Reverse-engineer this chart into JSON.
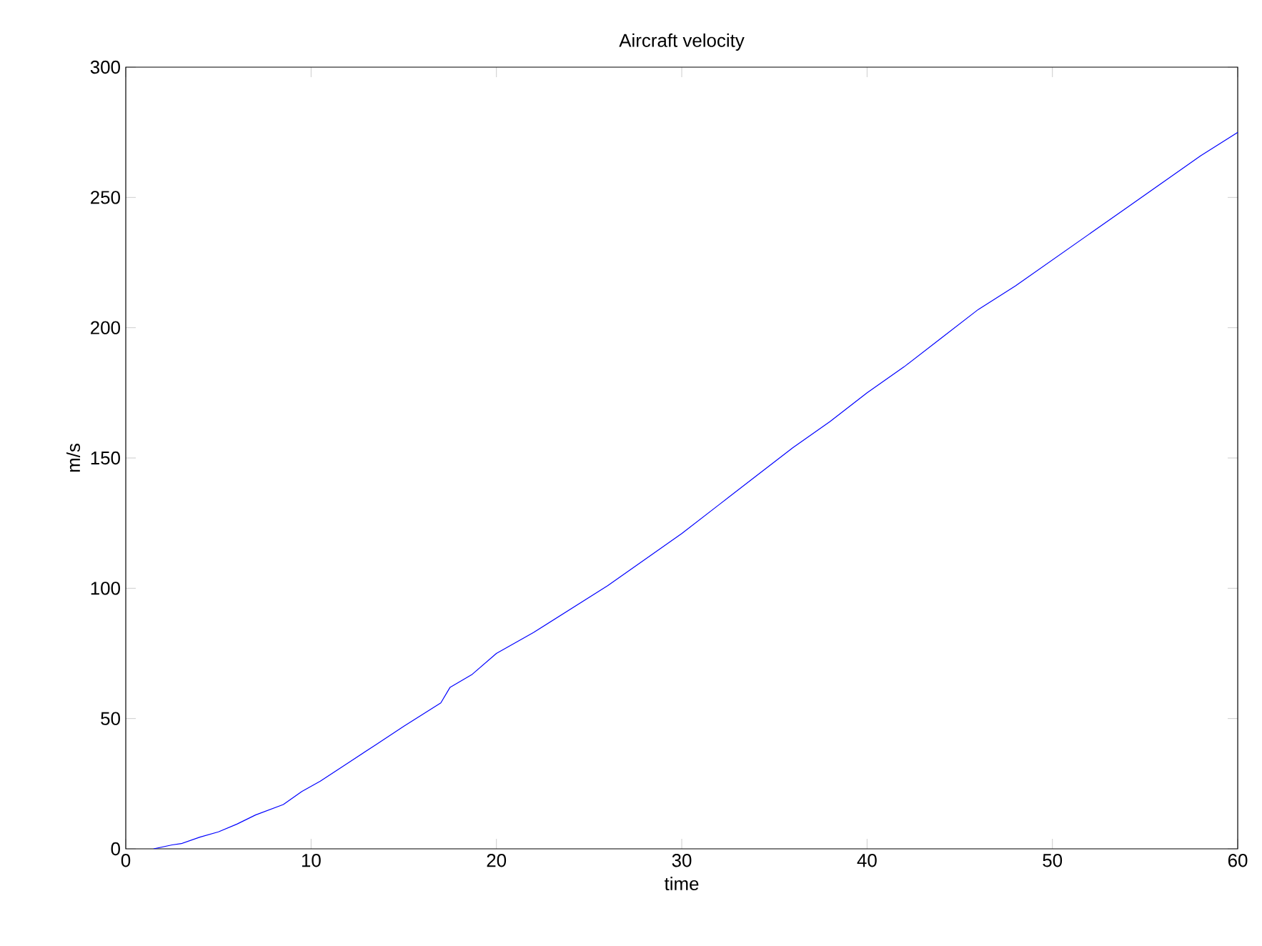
{
  "chart_data": {
    "type": "line",
    "title": "Aircraft velocity",
    "xlabel": "time",
    "ylabel": "m/s",
    "x": [
      1.5,
      2.5,
      3,
      4,
      5,
      6,
      7,
      8.5,
      9.5,
      10.5,
      12,
      13.5,
      15,
      17,
      17.5,
      18.7,
      20,
      22,
      24,
      26,
      28,
      30,
      32,
      34,
      36,
      38,
      40,
      42,
      44,
      46,
      48,
      50,
      52,
      54,
      56,
      58,
      60
    ],
    "series": [
      {
        "color": "#0000ff",
        "values": [
          0,
          1.5,
          2,
          4.5,
          6.5,
          9.5,
          13,
          17,
          22,
          26,
          33,
          40,
          47,
          56,
          62,
          67,
          75,
          83,
          92,
          101,
          111,
          121,
          132,
          143,
          154,
          164,
          175,
          185,
          196,
          207,
          216,
          226,
          236,
          246,
          256,
          266,
          275
        ]
      }
    ],
    "xlim": [
      0,
      60
    ],
    "ylim": [
      0,
      300
    ],
    "xticks": [
      0,
      10,
      20,
      30,
      40,
      50,
      60
    ],
    "yticks": [
      0,
      50,
      100,
      150,
      200,
      250,
      300
    ],
    "grid": false,
    "marker": "none",
    "line_style": "solid"
  }
}
